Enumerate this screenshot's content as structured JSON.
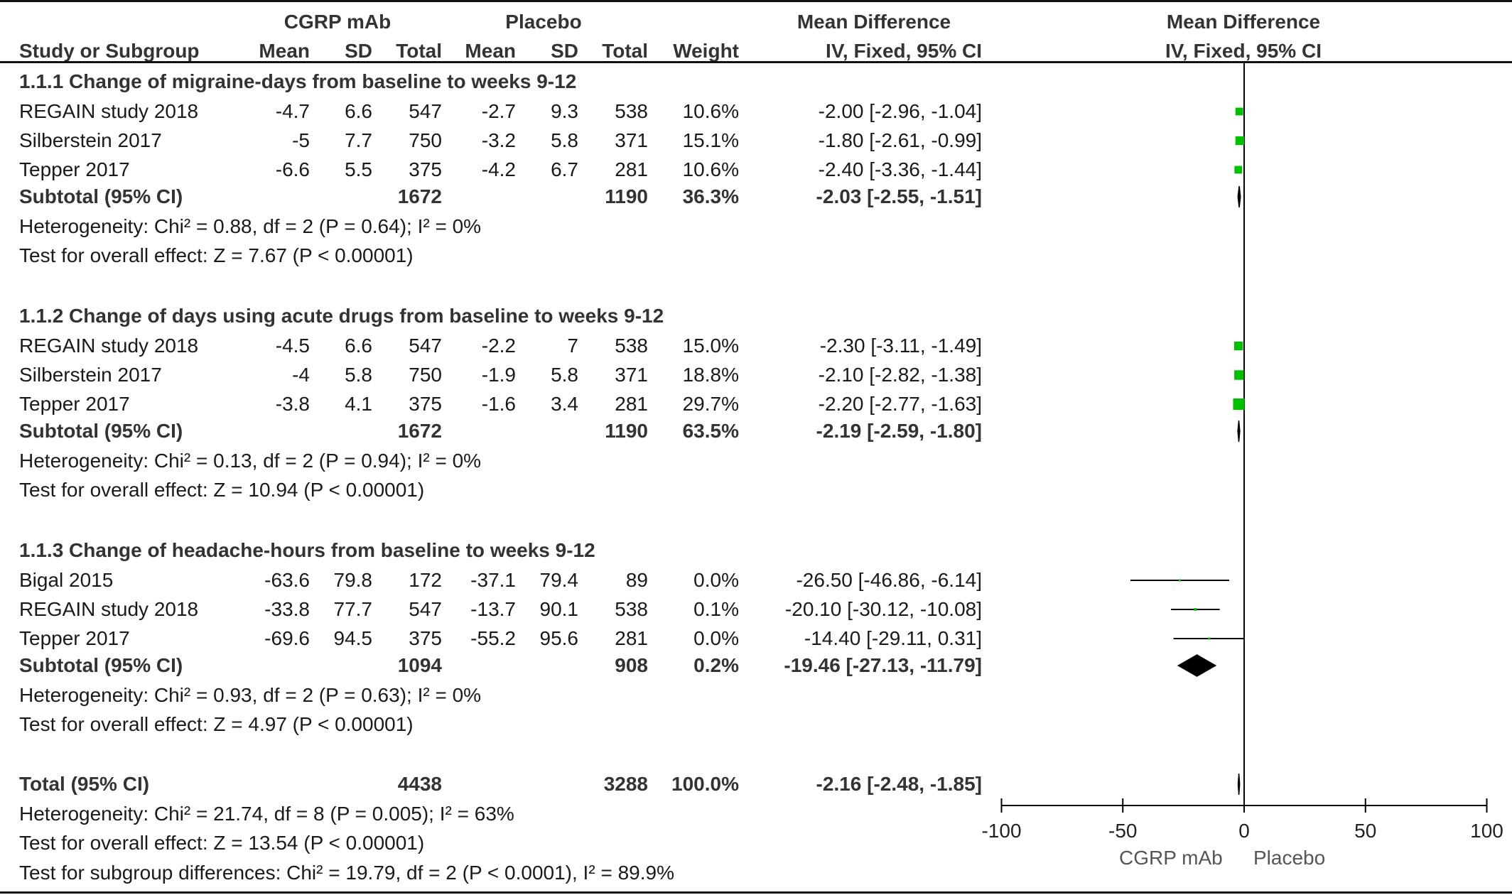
{
  "header": {
    "group1": "CGRP mAb",
    "group2": "Placebo",
    "effect_title": "Mean Difference",
    "effect_method": "IV, Fixed, 95% CI",
    "columns": [
      "Study or Subgroup",
      "Mean",
      "SD",
      "Total",
      "Mean",
      "SD",
      "Total",
      "Weight"
    ]
  },
  "subgroups": [
    {
      "title": "1.1.1 Change of migraine-days from baseline to weeks 9-12",
      "studies": [
        {
          "name": "REGAIN study 2018",
          "mean1": "-4.7",
          "sd1": "6.6",
          "n1": "547",
          "mean2": "-2.7",
          "sd2": "9.3",
          "n2": "538",
          "weight": "10.6%",
          "ci": "-2.00 [-2.96, -1.04]"
        },
        {
          "name": "Silberstein 2017",
          "mean1": "-5",
          "sd1": "7.7",
          "n1": "750",
          "mean2": "-3.2",
          "sd2": "5.8",
          "n2": "371",
          "weight": "15.1%",
          "ci": "-1.80 [-2.61, -0.99]"
        },
        {
          "name": "Tepper 2017",
          "mean1": "-6.6",
          "sd1": "5.5",
          "n1": "375",
          "mean2": "-4.2",
          "sd2": "6.7",
          "n2": "281",
          "weight": "10.6%",
          "ci": "-2.40 [-3.36, -1.44]"
        }
      ],
      "subtotal": {
        "label": "Subtotal (95% CI)",
        "n1": "1672",
        "n2": "1190",
        "weight": "36.3%",
        "ci": "-2.03 [-2.55, -1.51]"
      },
      "heterogeneity": "Heterogeneity: Chi² = 0.88, df = 2 (P = 0.64); I² = 0%",
      "effect_test": "Test for overall effect: Z = 7.67 (P < 0.00001)"
    },
    {
      "title": "1.1.2 Change of days using acute drugs from baseline to weeks 9-12",
      "studies": [
        {
          "name": "REGAIN study 2018",
          "mean1": "-4.5",
          "sd1": "6.6",
          "n1": "547",
          "mean2": "-2.2",
          "sd2": "7",
          "n2": "538",
          "weight": "15.0%",
          "ci": "-2.30 [-3.11, -1.49]"
        },
        {
          "name": "Silberstein 2017",
          "mean1": "-4",
          "sd1": "5.8",
          "n1": "750",
          "mean2": "-1.9",
          "sd2": "5.8",
          "n2": "371",
          "weight": "18.8%",
          "ci": "-2.10 [-2.82, -1.38]"
        },
        {
          "name": "Tepper 2017",
          "mean1": "-3.8",
          "sd1": "4.1",
          "n1": "375",
          "mean2": "-1.6",
          "sd2": "3.4",
          "n2": "281",
          "weight": "29.7%",
          "ci": "-2.20 [-2.77, -1.63]"
        }
      ],
      "subtotal": {
        "label": "Subtotal (95% CI)",
        "n1": "1672",
        "n2": "1190",
        "weight": "63.5%",
        "ci": "-2.19 [-2.59, -1.80]"
      },
      "heterogeneity": "Heterogeneity: Chi² = 0.13, df = 2 (P = 0.94); I² = 0%",
      "effect_test": "Test for overall effect: Z = 10.94 (P < 0.00001)"
    },
    {
      "title": "1.1.3 Change of headache-hours from baseline to weeks 9-12",
      "studies": [
        {
          "name": "Bigal 2015",
          "mean1": "-63.6",
          "sd1": "79.8",
          "n1": "172",
          "mean2": "-37.1",
          "sd2": "79.4",
          "n2": "89",
          "weight": "0.0%",
          "ci": "-26.50 [-46.86, -6.14]"
        },
        {
          "name": "REGAIN study 2018",
          "mean1": "-33.8",
          "sd1": "77.7",
          "n1": "547",
          "mean2": "-13.7",
          "sd2": "90.1",
          "n2": "538",
          "weight": "0.1%",
          "ci": "-20.10 [-30.12, -10.08]"
        },
        {
          "name": "Tepper 2017",
          "mean1": "-69.6",
          "sd1": "94.5",
          "n1": "375",
          "mean2": "-55.2",
          "sd2": "95.6",
          "n2": "281",
          "weight": "0.0%",
          "ci": "-14.40 [-29.11, 0.31]"
        }
      ],
      "subtotal": {
        "label": "Subtotal (95% CI)",
        "n1": "1094",
        "n2": "908",
        "weight": "0.2%",
        "ci": "-19.46 [-27.13, -11.79]"
      },
      "heterogeneity": "Heterogeneity: Chi² = 0.93, df = 2 (P = 0.63); I² = 0%",
      "effect_test": "Test for overall effect: Z = 4.97 (P < 0.00001)"
    }
  ],
  "overall": {
    "label": "Total (95% CI)",
    "total1": "4438",
    "total2": "3288",
    "weight": "100.0%",
    "ci_text": "-2.16 [-2.48, -1.85]",
    "heterogeneity": "Heterogeneity: Chi² = 21.74, df = 8 (P = 0.005); I² = 63%",
    "effect_test": "Test for overall effect: Z = 13.54 (P < 0.00001)",
    "subgroup_test": "Test for subgroup differences: Chi² = 19.79, df = 2 (P < 0.0001), I² = 89.9%"
  },
  "chart_data": {
    "type": "forest",
    "xlim": [
      -100,
      100
    ],
    "ticks": [
      -100,
      -50,
      0,
      50,
      100
    ],
    "tick_labels": [
      "-100",
      "-50",
      "0",
      "50",
      "100"
    ],
    "favours_left": "CGRP mAb",
    "favours_right": "Placebo",
    "study_color": "#00c000",
    "diamond_color": "#000000",
    "studies": [
      {
        "subgroup": 0,
        "name": "REGAIN study 2018",
        "md": -2.0,
        "lo": -2.96,
        "hi": -1.04,
        "weight": 10.6
      },
      {
        "subgroup": 0,
        "name": "Silberstein 2017",
        "md": -1.8,
        "lo": -2.61,
        "hi": -0.99,
        "weight": 15.1
      },
      {
        "subgroup": 0,
        "name": "Tepper 2017",
        "md": -2.4,
        "lo": -3.36,
        "hi": -1.44,
        "weight": 10.6
      },
      {
        "subgroup": 1,
        "name": "REGAIN study 2018",
        "md": -2.3,
        "lo": -3.11,
        "hi": -1.49,
        "weight": 15.0
      },
      {
        "subgroup": 1,
        "name": "Silberstein 2017",
        "md": -2.1,
        "lo": -2.82,
        "hi": -1.38,
        "weight": 18.8
      },
      {
        "subgroup": 1,
        "name": "Tepper 2017",
        "md": -2.2,
        "lo": -2.77,
        "hi": -1.63,
        "weight": 29.7
      },
      {
        "subgroup": 2,
        "name": "Bigal 2015",
        "md": -26.5,
        "lo": -46.86,
        "hi": -6.14,
        "weight": 0.0
      },
      {
        "subgroup": 2,
        "name": "REGAIN study 2018",
        "md": -20.1,
        "lo": -30.12,
        "hi": -10.08,
        "weight": 0.1
      },
      {
        "subgroup": 2,
        "name": "Tepper 2017",
        "md": -14.4,
        "lo": -29.11,
        "hi": 0.31,
        "weight": 0.0
      }
    ],
    "subtotals": [
      {
        "md": -2.03,
        "lo": -2.55,
        "hi": -1.51
      },
      {
        "md": -2.19,
        "lo": -2.59,
        "hi": -1.8
      },
      {
        "md": -19.46,
        "lo": -27.13,
        "hi": -11.79
      }
    ],
    "total": {
      "md": -2.16,
      "lo": -2.48,
      "hi": -1.85
    }
  }
}
